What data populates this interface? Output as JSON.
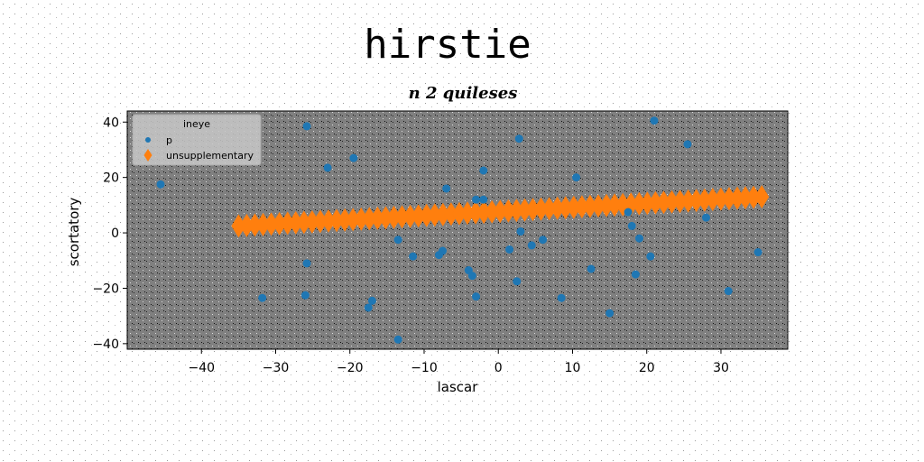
{
  "chart_data": {
    "type": "scatter",
    "title": "hirstie",
    "subtitle": "n 2 quileses",
    "xlabel": "lascar",
    "ylabel": "scortatory",
    "xlim": [
      -50,
      39
    ],
    "ylim": [
      -42,
      44
    ],
    "xticks": [
      -40,
      -30,
      -20,
      -10,
      0,
      10,
      20,
      30
    ],
    "yticks": [
      -40,
      -20,
      0,
      20,
      40
    ],
    "xtick_labels": [
      "−40",
      "−30",
      "−20",
      "−10",
      "0",
      "10",
      "20",
      "30"
    ],
    "ytick_labels": [
      "−40",
      "−20",
      "0",
      "20",
      "40"
    ],
    "grid": false,
    "background": "#808080",
    "legend": {
      "title": "ineye",
      "placement": "top-left"
    },
    "series": [
      {
        "name": "p",
        "marker": "circle",
        "color": "#1f77b4",
        "points": [
          [
            -45.5,
            17.5
          ],
          [
            -25.8,
            38.5
          ],
          [
            -23,
            23.5
          ],
          [
            -19.5,
            27
          ],
          [
            -31.8,
            -23.5
          ],
          [
            -25.8,
            -11
          ],
          [
            -26,
            -22.5
          ],
          [
            -17,
            -24.5
          ],
          [
            -17.5,
            -27
          ],
          [
            -13.5,
            -38.5
          ],
          [
            -13.5,
            -2.5
          ],
          [
            -11.5,
            -8.5
          ],
          [
            -7.5,
            -6.5
          ],
          [
            -8,
            -8
          ],
          [
            -7,
            16
          ],
          [
            -4,
            -13.5
          ],
          [
            -3.5,
            -15.5
          ],
          [
            -3,
            -23
          ],
          [
            -2,
            22.5
          ],
          [
            -3,
            12
          ],
          [
            -2,
            12
          ],
          [
            1.5,
            -6
          ],
          [
            2.5,
            -17.5
          ],
          [
            2.8,
            34
          ],
          [
            3,
            0.5
          ],
          [
            4.5,
            -4.5
          ],
          [
            6,
            -2.5
          ],
          [
            8.5,
            -23.5
          ],
          [
            10.5,
            20
          ],
          [
            12.5,
            -13
          ],
          [
            15,
            -29
          ],
          [
            17.5,
            7.5
          ],
          [
            18,
            2.5
          ],
          [
            18.5,
            -15
          ],
          [
            19,
            -2
          ],
          [
            20.5,
            -8.5
          ],
          [
            21,
            40.5
          ],
          [
            25.5,
            32
          ],
          [
            28,
            5.5
          ],
          [
            31,
            -21
          ],
          [
            35,
            -7
          ]
        ]
      },
      {
        "name": "unsupplementary",
        "marker": "diamond",
        "color": "#ff7f0e",
        "x_start": -35,
        "x_end": 35.5,
        "count": 65,
        "y_start": 2.5,
        "y_end": 13
      }
    ]
  }
}
